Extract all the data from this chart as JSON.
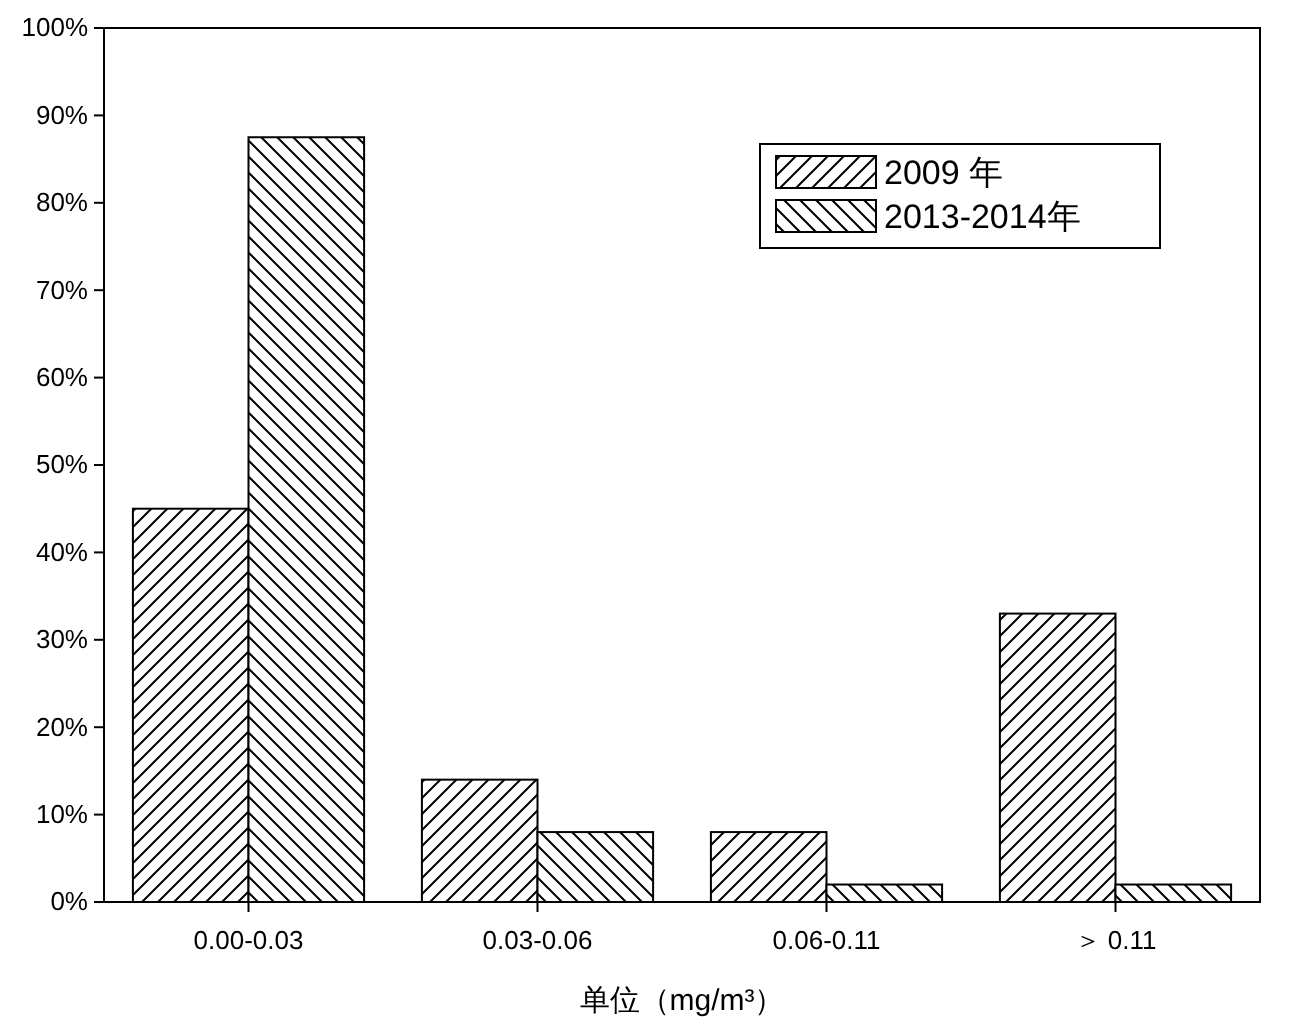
{
  "chart_data": {
    "type": "bar",
    "xlabel": "单位（mg/m³）",
    "categories": [
      "0.00-0.03",
      "0.03-0.06",
      "0.06-0.11",
      "＞ 0.11"
    ],
    "series": [
      {
        "name": "2009 年",
        "color": "#000000",
        "values": [
          45,
          14,
          8,
          33
        ]
      },
      {
        "name": "2013-2014年",
        "color": "#000000",
        "values": [
          87.5,
          8,
          2,
          2
        ]
      }
    ],
    "ylim": [
      0,
      100
    ],
    "yticks": [
      {
        "value": 0,
        "label": "0%"
      },
      {
        "value": 10,
        "label": "10%"
      },
      {
        "value": 20,
        "label": "20%"
      },
      {
        "value": 30,
        "label": "30%"
      },
      {
        "value": 40,
        "label": "40%"
      },
      {
        "value": 50,
        "label": "50%"
      },
      {
        "value": 60,
        "label": "60%"
      },
      {
        "value": 70,
        "label": "70%"
      },
      {
        "value": 80,
        "label": "80%"
      },
      {
        "value": 90,
        "label": "90%"
      },
      {
        "value": 100,
        "label": "100%"
      }
    ],
    "grid": false,
    "legend": "top right"
  }
}
